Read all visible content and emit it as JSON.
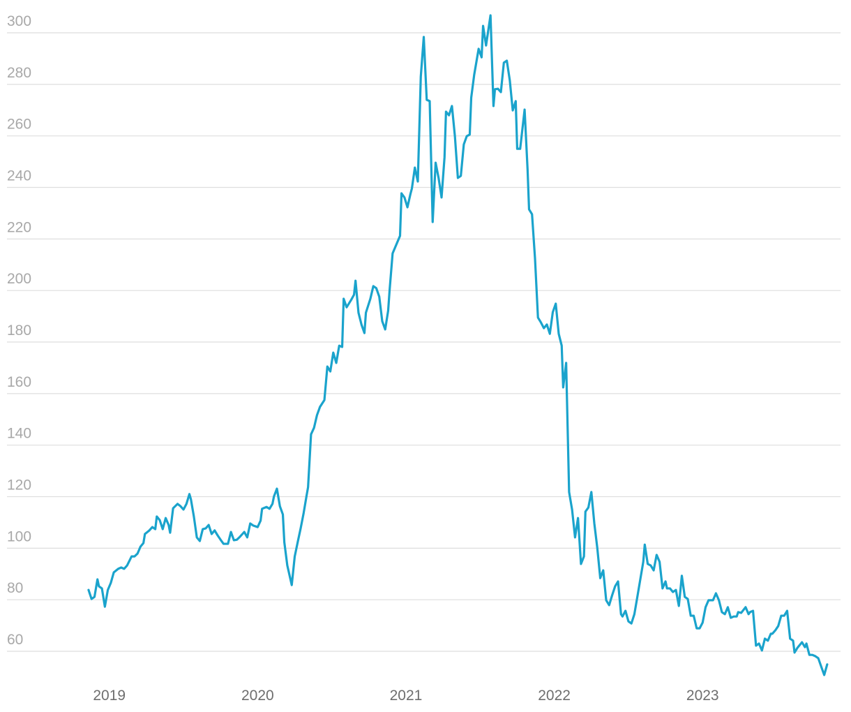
{
  "chart_data": {
    "type": "line",
    "color": "#1aa3cc",
    "grid": true,
    "xlim": [
      2018.31,
      2023.93
    ],
    "xticks": [
      2019,
      2020,
      2021,
      2022,
      2023
    ],
    "ylim": [
      48,
      308
    ],
    "yticks": [
      60,
      80,
      100,
      120,
      140,
      160,
      180,
      200,
      220,
      240,
      260,
      280,
      300
    ],
    "x": [
      2018.86,
      2018.88,
      2018.9,
      2018.92,
      2018.93,
      2018.95,
      2018.97,
      2018.99,
      2019.01,
      2019.03,
      2019.06,
      2019.08,
      2019.1,
      2019.12,
      2019.15,
      2019.17,
      2019.19,
      2019.21,
      2019.23,
      2019.24,
      2019.27,
      2019.29,
      2019.31,
      2019.32,
      2019.34,
      2019.36,
      2019.38,
      2019.4,
      2019.41,
      2019.43,
      2019.46,
      2019.48,
      2019.5,
      2019.52,
      2019.54,
      2019.55,
      2019.57,
      2019.59,
      2019.61,
      2019.63,
      2019.65,
      2019.67,
      2019.69,
      2019.71,
      2019.73,
      2019.75,
      2019.77,
      2019.8,
      2019.82,
      2019.84,
      2019.86,
      2019.88,
      2019.91,
      2019.93,
      2019.95,
      2019.97,
      2020.0,
      2020.02,
      2020.03,
      2020.06,
      2020.08,
      2020.1,
      2020.11,
      2020.13,
      2020.15,
      2020.17,
      2020.18,
      2020.2,
      2020.23,
      2020.25,
      2020.27,
      2020.29,
      2020.31,
      2020.33,
      2020.34,
      2020.36,
      2020.38,
      2020.4,
      2020.42,
      2020.45,
      2020.47,
      2020.49,
      2020.51,
      2020.53,
      2020.55,
      2020.57,
      2020.58,
      2020.6,
      2020.63,
      2020.65,
      2020.66,
      2020.68,
      2020.7,
      2020.72,
      2020.73,
      2020.76,
      2020.78,
      2020.8,
      2020.82,
      2020.84,
      2020.86,
      2020.88,
      2020.89,
      2020.91,
      2020.94,
      2020.96,
      2020.97,
      2020.99,
      2021.01,
      2021.03,
      2021.04,
      2021.06,
      2021.08,
      2021.1,
      2021.12,
      2021.14,
      2021.16,
      2021.18,
      2021.2,
      2021.22,
      2021.24,
      2021.26,
      2021.27,
      2021.29,
      2021.31,
      2021.33,
      2021.35,
      2021.37,
      2021.39,
      2021.41,
      2021.43,
      2021.44,
      2021.46,
      2021.49,
      2021.51,
      2021.52,
      2021.54,
      2021.57,
      2021.59,
      2021.6,
      2021.62,
      2021.64,
      2021.66,
      2021.68,
      2021.7,
      2021.72,
      2021.74,
      2021.75,
      2021.77,
      2021.8,
      2021.82,
      2021.83,
      2021.85,
      2021.87,
      2021.89,
      2021.91,
      2021.93,
      2021.95,
      2021.97,
      2021.99,
      2022.01,
      2022.03,
      2022.05,
      2022.06,
      2022.08,
      2022.1,
      2022.12,
      2022.14,
      2022.16,
      2022.18,
      2022.2,
      2022.21,
      2022.23,
      2022.25,
      2022.27,
      2022.29,
      2022.31,
      2022.33,
      2022.35,
      2022.37,
      2022.39,
      2022.41,
      2022.43,
      2022.45,
      2022.46,
      2022.48,
      2022.5,
      2022.52,
      2022.54,
      2022.56,
      2022.58,
      2022.6,
      2022.61,
      2022.63,
      2022.65,
      2022.67,
      2022.69,
      2022.71,
      2022.73,
      2022.75,
      2022.76,
      2022.78,
      2022.8,
      2022.82,
      2022.84,
      2022.86,
      2022.88,
      2022.9,
      2022.92,
      2022.94,
      2022.96,
      2022.98,
      2023.0,
      2023.02,
      2023.04,
      2023.06,
      2023.07,
      2023.09,
      2023.11,
      2023.13,
      2023.15,
      2023.17,
      2023.19,
      2023.21,
      2023.23,
      2023.24,
      2023.26,
      2023.29,
      2023.31,
      2023.32,
      2023.34,
      2023.36,
      2023.38,
      2023.4,
      2023.42,
      2023.44,
      2023.46,
      2023.47,
      2023.49,
      2023.51,
      2023.53,
      2023.55,
      2023.57,
      2023.59,
      2023.61,
      2023.62,
      2023.64,
      2023.67,
      2023.69,
      2023.7,
      2023.72,
      2023.74,
      2023.76,
      2023.78,
      2023.8,
      2023.82,
      2023.84
    ],
    "values": [
      83.8,
      80.3,
      81.1,
      87.9,
      85.2,
      84.4,
      77.3,
      83.8,
      86.5,
      90.6,
      92.0,
      92.5,
      92.0,
      93.3,
      96.8,
      96.8,
      97.9,
      100.6,
      102.0,
      105.5,
      106.9,
      108.2,
      107.4,
      112.3,
      110.9,
      107.4,
      111.7,
      109.0,
      106.0,
      115.5,
      117.2,
      116.3,
      115.0,
      117.2,
      121.0,
      119.0,
      112.3,
      104.2,
      102.8,
      107.4,
      107.7,
      109.0,
      105.5,
      106.9,
      105.0,
      103.3,
      101.7,
      101.7,
      106.3,
      103.1,
      103.3,
      104.4,
      106.3,
      104.2,
      109.6,
      108.8,
      108.2,
      110.7,
      115.3,
      116.0,
      115.3,
      117.2,
      120.1,
      123.1,
      116.3,
      113.1,
      102.3,
      93.3,
      85.7,
      96.8,
      102.3,
      107.7,
      113.6,
      120.4,
      123.7,
      144.2,
      146.7,
      151.6,
      154.8,
      157.5,
      170.5,
      168.6,
      175.9,
      171.9,
      178.6,
      178.1,
      196.8,
      193.5,
      196.3,
      198.4,
      203.8,
      191.4,
      186.8,
      183.5,
      191.4,
      196.8,
      201.7,
      200.9,
      197.6,
      188.1,
      184.9,
      192.2,
      200.3,
      214.4,
      218.5,
      221.2,
      237.7,
      236.1,
      232.3,
      237.4,
      239.6,
      247.7,
      242.3,
      283.0,
      298.4,
      274.0,
      273.5,
      226.6,
      249.6,
      243.7,
      236.1,
      251.7,
      269.4,
      268.0,
      271.6,
      259.9,
      243.7,
      244.5,
      256.7,
      259.9,
      260.5,
      274.8,
      283.7,
      293.8,
      290.5,
      302.7,
      295.1,
      306.8,
      271.6,
      278.1,
      278.3,
      277.0,
      288.4,
      289.2,
      281.6,
      269.9,
      273.5,
      255.0,
      255.0,
      270.2,
      246.9,
      231.5,
      229.6,
      212.5,
      189.5,
      187.6,
      185.4,
      186.8,
      183.2,
      191.6,
      194.9,
      183.2,
      178.6,
      162.4,
      171.9,
      121.8,
      115.0,
      104.2,
      111.7,
      93.9,
      96.8,
      114.2,
      115.8,
      121.8,
      109.6,
      100.1,
      88.4,
      91.4,
      79.8,
      77.9,
      81.7,
      85.2,
      87.1,
      74.4,
      73.5,
      75.7,
      71.6,
      70.8,
      74.4,
      81.1,
      87.9,
      94.7,
      101.4,
      93.9,
      93.3,
      91.4,
      97.4,
      94.7,
      84.4,
      87.1,
      84.4,
      84.4,
      83.0,
      83.8,
      77.6,
      89.3,
      81.1,
      80.3,
      73.8,
      73.8,
      68.9,
      68.9,
      71.1,
      77.1,
      79.8,
      79.8,
      79.8,
      82.5,
      79.8,
      75.2,
      74.4,
      77.1,
      73.0,
      73.5,
      73.5,
      75.2,
      74.9,
      77.1,
      74.4,
      75.2,
      75.7,
      62.2,
      63.0,
      60.3,
      64.9,
      64.1,
      66.8,
      66.8,
      68.1,
      69.8,
      73.8,
      73.8,
      75.7,
      64.9,
      64.1,
      59.5,
      61.4,
      63.5,
      61.6,
      63.0,
      58.6,
      58.6,
      58.1,
      57.3,
      54.0,
      50.8,
      54.9
    ]
  }
}
